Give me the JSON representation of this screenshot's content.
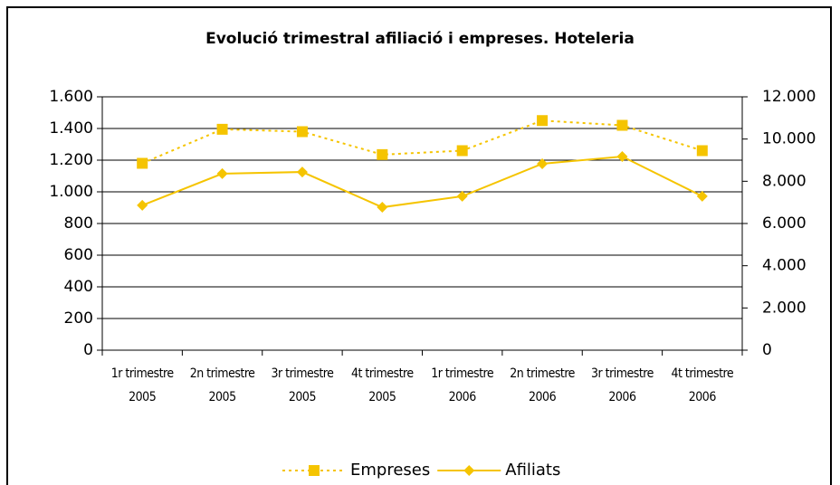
{
  "chart_data": {
    "type": "line",
    "title": "Evolució trimestral afiliació i empreses. Hoteleria",
    "categories": [
      "1r trimestre 2005",
      "2n trimestre 2005",
      "3r trimestre 2005",
      "4t trimestre 2005",
      "1r trimestre 2006",
      "2n trimestre 2006",
      "3r trimestre 2006",
      "4t trimestre 2006"
    ],
    "series": [
      {
        "name": "Empreses",
        "color": "#f5c400",
        "dash": "dotted",
        "marker": "square",
        "axis": "y",
        "values": [
          1180,
          1395,
          1380,
          1235,
          1260,
          1450,
          1420,
          1260
        ]
      },
      {
        "name": "Afiliats",
        "color": "#f5c400",
        "dash": "solid",
        "marker": "diamond",
        "axis": "y2",
        "values": [
          6860,
          8360,
          8440,
          6770,
          7290,
          8830,
          9170,
          7290
        ]
      }
    ],
    "ylim": [
      0,
      1600
    ],
    "yticks": [
      0,
      200,
      400,
      600,
      800,
      {
        "value": 1000,
        "label": "1.000"
      },
      {
        "value": 1200,
        "label": "1.200"
      },
      {
        "value": 1400,
        "label": "1.400"
      },
      {
        "value": 1600,
        "label": "1.600"
      }
    ],
    "y2lim": [
      0,
      12000
    ],
    "y2ticks": [
      0,
      {
        "value": 2000,
        "label": "2.000"
      },
      {
        "value": 4000,
        "label": "4.000"
      },
      {
        "value": 6000,
        "label": "6.000"
      },
      {
        "value": 8000,
        "label": "8.000"
      },
      {
        "value": 10000,
        "label": "10.000"
      },
      {
        "value": 12000,
        "label": "12.000"
      }
    ],
    "grid": true,
    "legend": "bottom"
  }
}
